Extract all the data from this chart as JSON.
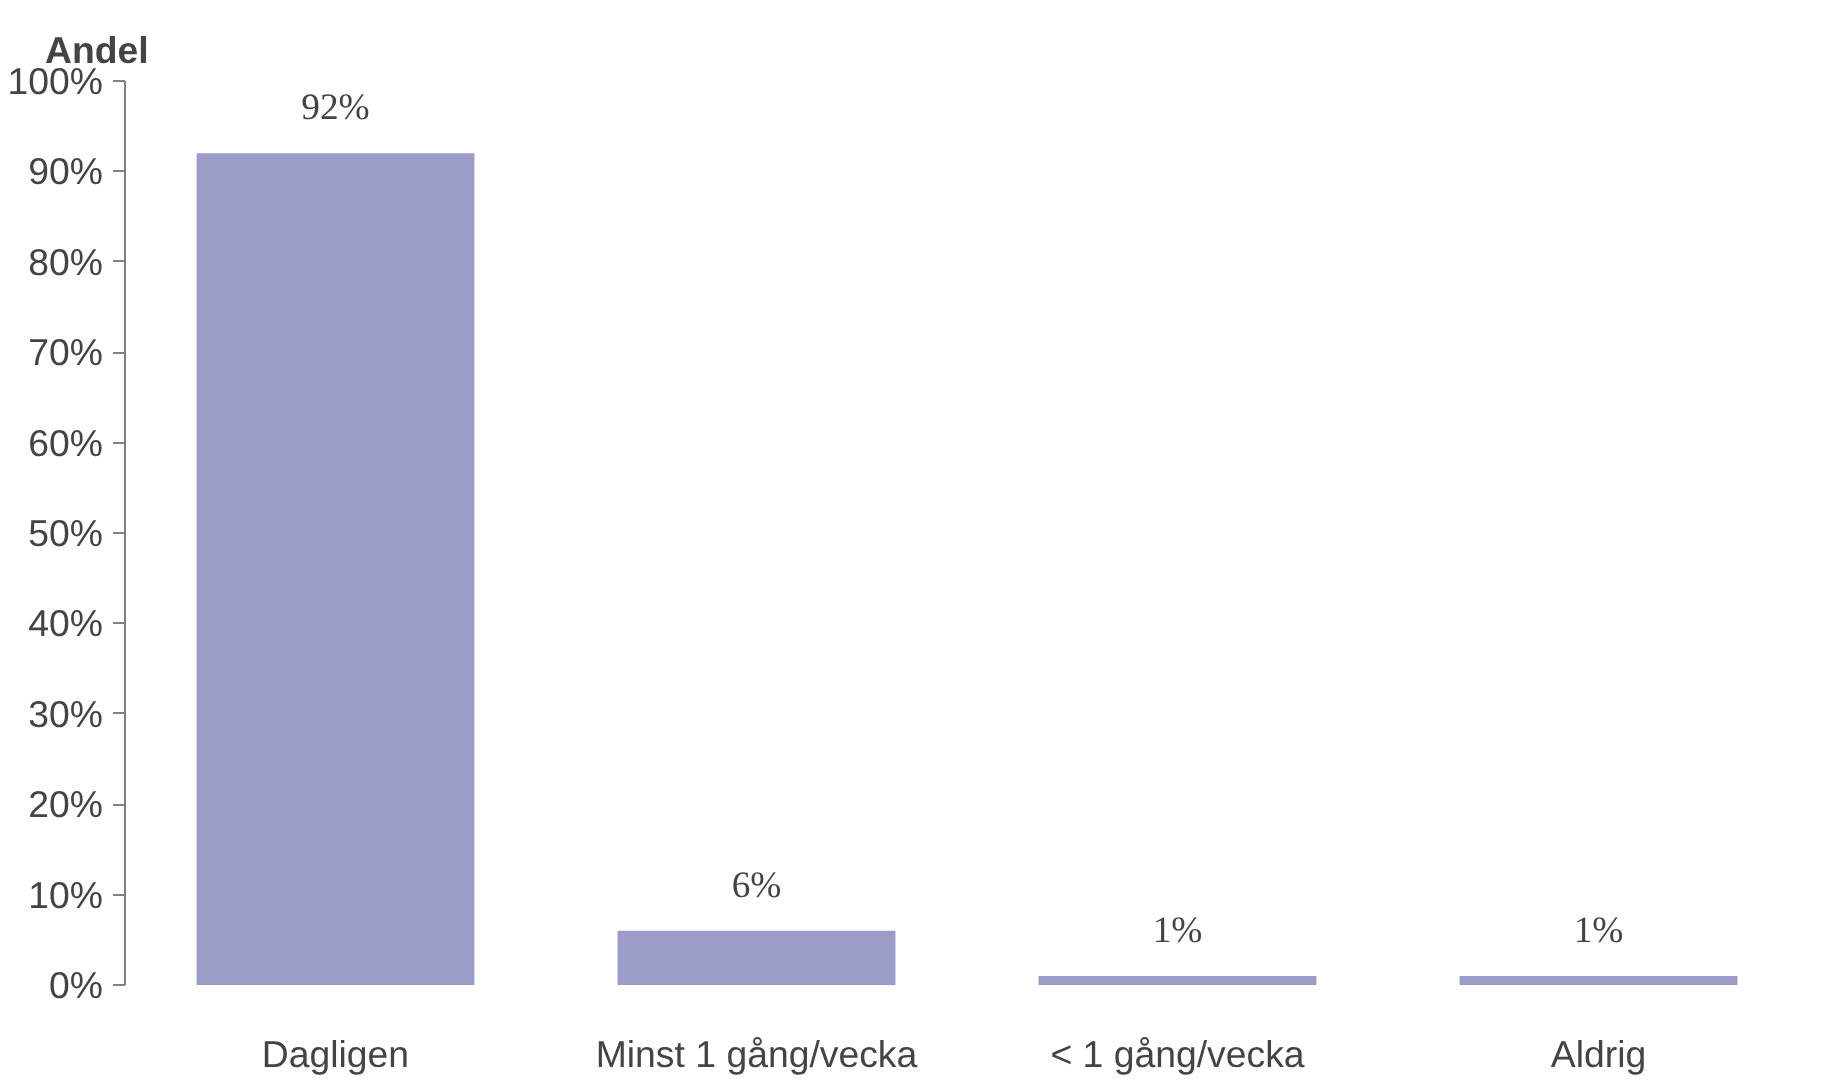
{
  "chart_data": {
    "type": "bar",
    "ylabel": "Andel",
    "categories": [
      "Dagligen",
      "Minst 1 gång/vecka",
      "< 1 gång/vecka",
      "Aldrig"
    ],
    "values": [
      92,
      6,
      1,
      1
    ],
    "value_labels": [
      "92%",
      "6%",
      "1%",
      "1%"
    ],
    "color": "#9c9cc8",
    "ylim": [
      0,
      100
    ],
    "yticks": [
      {
        "value": 0,
        "label": "0%"
      },
      {
        "value": 10,
        "label": "10%"
      },
      {
        "value": 20,
        "label": "20%"
      },
      {
        "value": 30,
        "label": "30%"
      },
      {
        "value": 40,
        "label": "40%"
      },
      {
        "value": 50,
        "label": "50%"
      },
      {
        "value": 60,
        "label": "60%"
      },
      {
        "value": 70,
        "label": "70%"
      },
      {
        "value": 80,
        "label": "80%"
      },
      {
        "value": 90,
        "label": "90%"
      },
      {
        "value": 100,
        "label": "100%"
      }
    ],
    "grid": false
  }
}
